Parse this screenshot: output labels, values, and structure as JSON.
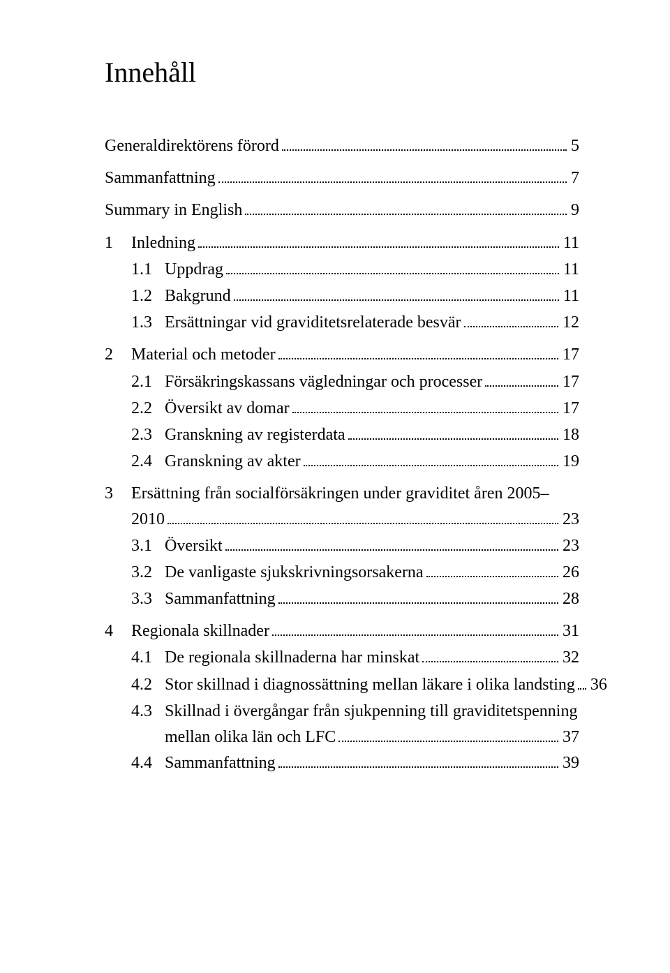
{
  "title": "Innehåll",
  "typography": {
    "font_family": "Times New Roman",
    "title_fontsize_pt": 30,
    "body_fontsize_pt": 18,
    "text_color": "#000000",
    "background_color": "#ffffff",
    "leader_style": "dotted"
  },
  "toc": [
    {
      "level": 0,
      "number": "",
      "label": "Generaldirektörens förord",
      "page": "5"
    },
    {
      "level": 0,
      "number": "",
      "label": "Sammanfattning",
      "page": "7"
    },
    {
      "level": 0,
      "number": "",
      "label": "Summary in English",
      "page": "9"
    },
    {
      "level": 0,
      "number": "1",
      "label": "Inledning",
      "page": "11"
    },
    {
      "level": 1,
      "number": "1.1",
      "label": "Uppdrag",
      "page": "11"
    },
    {
      "level": 1,
      "number": "1.2",
      "label": "Bakgrund",
      "page": "11"
    },
    {
      "level": 1,
      "number": "1.3",
      "label": "Ersättningar vid graviditetsrelaterade besvär",
      "page": "12"
    },
    {
      "level": 0,
      "number": "2",
      "label": "Material och metoder",
      "page": "17"
    },
    {
      "level": 1,
      "number": "2.1",
      "label": "Försäkringskassans vägledningar och processer",
      "page": "17"
    },
    {
      "level": 1,
      "number": "2.2",
      "label": "Översikt av domar",
      "page": "17"
    },
    {
      "level": 1,
      "number": "2.3",
      "label": "Granskning av registerdata",
      "page": "18"
    },
    {
      "level": 1,
      "number": "2.4",
      "label": "Granskning av akter",
      "page": "19"
    },
    {
      "level": 0,
      "number": "3",
      "label_line1": "Ersättning från socialförsäkringen under graviditet åren 2005–",
      "label_line2": "2010",
      "page": "23",
      "multi": true
    },
    {
      "level": 1,
      "number": "3.1",
      "label": "Översikt",
      "page": "23"
    },
    {
      "level": 1,
      "number": "3.2",
      "label": "De vanligaste sjukskrivningsorsakerna",
      "page": "26"
    },
    {
      "level": 1,
      "number": "3.3",
      "label": "Sammanfattning",
      "page": "28"
    },
    {
      "level": 0,
      "number": "4",
      "label": "Regionala skillnader",
      "page": "31"
    },
    {
      "level": 1,
      "number": "4.1",
      "label": "De regionala skillnaderna har minskat",
      "page": "32"
    },
    {
      "level": 1,
      "number": "4.2",
      "label": "Stor skillnad i diagnossättning mellan läkare i olika landsting",
      "page": "36"
    },
    {
      "level": 1,
      "number": "4.3",
      "label_line1": "Skillnad i övergångar från sjukpenning till graviditetspenning",
      "label_line2": "mellan olika län och LFC",
      "page": "37",
      "multi": true
    },
    {
      "level": 1,
      "number": "4.4",
      "label": "Sammanfattning",
      "page": "39"
    }
  ]
}
